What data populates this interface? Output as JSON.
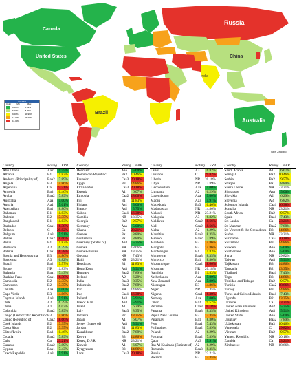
{
  "colors": {
    "ocean": "#ffffff",
    "green": "#24b34b",
    "light_green": "#b7e07f",
    "yellow": "#f6f000",
    "orange": "#f7a21b",
    "red": "#e4322b"
  },
  "map": {
    "labels": {
      "canada": "Canada",
      "usa": "United States",
      "russia": "Russia",
      "china": "China",
      "india": "India",
      "brazil": "Brazil",
      "australia": "Australia",
      "new_zealand": "New Zealand"
    }
  },
  "legend": {
    "title": "LEGEND",
    "col1": "Color",
    "col2": "Min",
    "col3": "Max",
    "rows": [
      {
        "min": "0.00%",
        "max": "5.99%"
      },
      {
        "min": "6.00%",
        "max": "8.99%"
      },
      {
        "min": "9.00%",
        "max": "11.99%"
      },
      {
        "min": "12.00%",
        "max": "15.99%"
      },
      {
        "min": "16.00%",
        "max": ""
      }
    ]
  },
  "table": {
    "headers": {
      "country": "Country",
      "rating": "Rating",
      "erp": "ERP"
    },
    "col1": [
      {
        "c": "Abu Dhabi",
        "r": "Aa2",
        "e": "5.75%",
        "k": "g"
      },
      {
        "c": "Albania",
        "r": "B1",
        "e": "11.83%",
        "k": "y"
      },
      {
        "c": "Andorra (Principality of)",
        "r": "Baa2",
        "e": "7.89%",
        "k": "l"
      },
      {
        "c": "Angola",
        "r": "B3",
        "e": "14.86%",
        "k": "o"
      },
      {
        "c": "Argentina",
        "r": "Ca",
        "e": "23.21%",
        "k": "r"
      },
      {
        "c": "Armenia",
        "r": "Ba3",
        "e": "10.46%",
        "k": "y"
      },
      {
        "c": "Aruba",
        "r": "Baa2",
        "e": "7.89%",
        "k": "l"
      },
      {
        "c": "Australia",
        "r": "Aaa",
        "e": "5.00%",
        "k": "g"
      },
      {
        "c": "Austria",
        "r": "Aa1",
        "e": "5.61%",
        "k": "g"
      },
      {
        "c": "Azerbaijan",
        "r": "Ba1",
        "e": "8.80%",
        "k": "l"
      },
      {
        "c": "Bahamas",
        "r": "B1",
        "e": "11.83%",
        "k": "y"
      },
      {
        "c": "Bahrain",
        "r": "B2",
        "e": "13.35%",
        "k": "o"
      },
      {
        "c": "Bangladesh",
        "r": "B1",
        "e": "11.83%",
        "k": "y"
      },
      {
        "c": "Barbados",
        "r": "Caa1",
        "e": "16.38%",
        "k": "r"
      },
      {
        "c": "Belarus",
        "r": "C",
        "e": "29.82%",
        "k": "r"
      },
      {
        "c": "Belgium",
        "r": "Aa3",
        "e": "5.91%",
        "k": "g"
      },
      {
        "c": "Belize",
        "r": "Caa2",
        "e": "18.66%",
        "k": "r"
      },
      {
        "c": "Benin",
        "r": "B1",
        "e": "11.83%",
        "k": "y"
      },
      {
        "c": "Bermuda",
        "r": "A2",
        "e": "6.29%",
        "k": "l"
      },
      {
        "c": "Bolivia",
        "r": "Caa1",
        "e": "16.38%",
        "k": "r"
      },
      {
        "c": "Bosnia and Herzegovina",
        "r": "B3",
        "e": "14.86%",
        "k": "o"
      },
      {
        "c": "Botswana",
        "r": "A3",
        "e": "6.82%",
        "k": "l"
      },
      {
        "c": "Brazil",
        "r": "Ba2",
        "e": "9.57%",
        "k": "y"
      },
      {
        "c": "Brunei",
        "r": "NR",
        "e": "11.83%",
        "k": "n"
      },
      {
        "c": "Bulgaria",
        "r": "Baa1",
        "e": "7.43%",
        "k": "l"
      },
      {
        "c": "Burkina Faso",
        "r": "Caa1",
        "e": "16.38%",
        "k": "r"
      },
      {
        "c": "Cambodia",
        "r": "B2",
        "e": "13.35%",
        "k": "o"
      },
      {
        "c": "Cameroon",
        "r": "B2",
        "e": "13.35%",
        "k": "o"
      },
      {
        "c": "Canada",
        "r": "Aaa",
        "e": "5.00%",
        "k": "g"
      },
      {
        "c": "Cape Verde",
        "r": "B3",
        "e": "14.86%",
        "k": "o"
      },
      {
        "c": "Cayman Islands",
        "r": "Aa3",
        "e": "5.91%",
        "k": "g"
      },
      {
        "c": "Chile",
        "r": "A2",
        "e": "6.29%",
        "k": "l"
      },
      {
        "c": "China",
        "r": "A1",
        "e": "6.07%",
        "k": "l"
      },
      {
        "c": "Colombia",
        "r": "Baa2",
        "e": "7.89%",
        "k": "l"
      },
      {
        "c": "Congo (Democratic Republic of)",
        "r": "B3",
        "e": "14.86%",
        "k": "o"
      },
      {
        "c": "Congo (Republic of)",
        "r": "Caa2",
        "e": "18.66%",
        "k": "r"
      },
      {
        "c": "Cook Islands",
        "r": "B2",
        "e": "13.35%",
        "k": "o"
      },
      {
        "c": "Costa Rica",
        "r": "B2",
        "e": "13.35%",
        "k": "o"
      },
      {
        "c": "Côte d'Ivoire",
        "r": "Ba3",
        "e": "10.46%",
        "k": "y"
      },
      {
        "c": "Croatia",
        "r": "Baa2",
        "e": "7.89%",
        "k": "l"
      },
      {
        "c": "Cuba",
        "r": "Ca",
        "e": "23.21%",
        "k": "r"
      },
      {
        "c": "Curacao",
        "r": "Baa2",
        "e": "7.89%",
        "k": "l"
      },
      {
        "c": "Cyprus",
        "r": "Baa1",
        "e": "7.43%",
        "k": "l"
      },
      {
        "c": "Czech Republic",
        "r": "Aa3",
        "e": "5.91%",
        "k": "g"
      }
    ],
    "col2": [
      {
        "c": "Denmark",
        "r": "Aaa",
        "e": "5.00%",
        "k": "g"
      },
      {
        "c": "Dominican Republic",
        "r": "Ba3",
        "e": "10.46%",
        "k": "y"
      },
      {
        "c": "Ecuador",
        "r": "Caa3",
        "e": "20.18%",
        "k": "r"
      },
      {
        "c": "Egypt",
        "r": "B3",
        "e": "14.86%",
        "k": "o"
      },
      {
        "c": "El Salvador",
        "r": "Caa3",
        "e": "20.18%",
        "k": "r"
      },
      {
        "c": "Estonia",
        "r": "A1",
        "e": "6.07%",
        "k": "l"
      },
      {
        "c": "Ethiopia",
        "r": "Caa2",
        "e": "18.66%",
        "k": "r"
      },
      {
        "c": "Fiji",
        "r": "B1",
        "e": "11.83%",
        "k": "y"
      },
      {
        "c": "Finland",
        "r": "Aa1",
        "e": "5.00%",
        "k": "g"
      },
      {
        "c": "France",
        "r": "Aa2",
        "e": "5.75%",
        "k": "g"
      },
      {
        "c": "Gabon",
        "r": "Caa1",
        "e": "16.38%",
        "k": "r"
      },
      {
        "c": "Gambia",
        "r": "NR",
        "e": "13.35%",
        "k": "n"
      },
      {
        "c": "Georgia",
        "r": "Ba2",
        "e": "9.57%",
        "k": "y"
      },
      {
        "c": "Germany",
        "r": "Aaa",
        "e": "5.00%",
        "k": "g"
      },
      {
        "c": "Ghana",
        "r": "Ca",
        "e": "23.21%",
        "k": "r"
      },
      {
        "c": "Greece",
        "r": "Ba1",
        "e": "8.80%",
        "k": "l"
      },
      {
        "c": "Guatemala",
        "r": "Ba1",
        "e": "8.80%",
        "k": "l"
      },
      {
        "c": "Guernsey (States of)",
        "r": "Aa3",
        "e": "5.75%",
        "k": "g"
      },
      {
        "c": "Guinea",
        "r": "NR",
        "e": "18.66%",
        "k": "n"
      },
      {
        "c": "Guinea-Bissau",
        "r": "NR",
        "e": "13.35%",
        "k": "n"
      },
      {
        "c": "Guyana",
        "r": "NR",
        "e": "7.43%",
        "k": "n"
      },
      {
        "c": "Haiti",
        "r": "NR",
        "e": "23.21%",
        "k": "n"
      },
      {
        "c": "Honduras",
        "r": "B1",
        "e": "11.83%",
        "k": "y"
      },
      {
        "c": "Hong Kong",
        "r": "Aa3",
        "e": "5.91%",
        "k": "g"
      },
      {
        "c": "Hungary",
        "r": "Baa2",
        "e": "7.89%",
        "k": "l"
      },
      {
        "c": "Iceland",
        "r": "A2",
        "e": "6.29%",
        "k": "l"
      },
      {
        "c": "India",
        "r": "Baa3",
        "e": "8.35%",
        "k": "l"
      },
      {
        "c": "Indonesia",
        "r": "Baa2",
        "e": "7.89%",
        "k": "l"
      },
      {
        "c": "Iran",
        "r": "NR",
        "e": "14.86%",
        "k": "n"
      },
      {
        "c": "Iraq",
        "r": "Caa1",
        "e": "16.38%",
        "k": "r"
      },
      {
        "c": "Ireland",
        "r": "Aa3",
        "e": "5.91%",
        "k": "g"
      },
      {
        "c": "Isle of Man",
        "r": "Aa3",
        "e": "5.91%",
        "k": "g"
      },
      {
        "c": "Israel",
        "r": "A1",
        "e": "6.29%",
        "k": "l"
      },
      {
        "c": "Italy",
        "r": "Baa3",
        "e": "8.35%",
        "k": "l"
      },
      {
        "c": "Jamaica",
        "r": "B2",
        "e": "13.35%",
        "k": "o"
      },
      {
        "c": "Japan",
        "r": "A1",
        "e": "6.07%",
        "k": "l"
      },
      {
        "c": "Jersey (States of)",
        "r": "Aa3",
        "e": "5.91%",
        "k": "g"
      },
      {
        "c": "Jordan",
        "r": "B1",
        "e": "11.83%",
        "k": "y"
      },
      {
        "c": "Kazakhstan",
        "r": "Baa2",
        "e": "7.89%",
        "k": "l"
      },
      {
        "c": "Kenya",
        "r": "B3",
        "e": "14.86%",
        "k": "o"
      },
      {
        "c": "Korea, D.P.R.",
        "r": "NR",
        "e": "23.21%",
        "k": "n"
      },
      {
        "c": "Kuwait",
        "r": "A1",
        "e": "6.07%",
        "k": "l"
      },
      {
        "c": "Kyrgyzstan",
        "r": "B3",
        "e": "14.86%",
        "k": "o"
      },
      {
        "c": "Laos",
        "r": "Caa3",
        "e": "20.18%",
        "k": "r"
      }
    ],
    "col3": [
      {
        "c": "Latvia",
        "r": "A3",
        "e": "6.82%",
        "k": "l"
      },
      {
        "c": "Lebanon",
        "r": "C",
        "e": "29.82%",
        "k": "r"
      },
      {
        "c": "Liberia",
        "r": "NR",
        "e": "20.18%",
        "k": "n"
      },
      {
        "c": "Libya",
        "r": "NR",
        "e": "7.89%",
        "k": "n"
      },
      {
        "c": "Liechtenstein",
        "r": "Aaa",
        "e": "5.00%",
        "k": "g"
      },
      {
        "c": "Lithuania",
        "r": "A2",
        "e": "6.29%",
        "k": "l"
      },
      {
        "c": "Luxembourg",
        "r": "Aaa",
        "e": "5.00%",
        "k": "g"
      },
      {
        "c": "Macau",
        "r": "Aa3",
        "e": "5.91%",
        "k": "g"
      },
      {
        "c": "Macedonia",
        "r": "Ba3",
        "e": "10.46%",
        "k": "y"
      },
      {
        "c": "Madagascar",
        "r": "NR",
        "e": "14.86%",
        "k": "n"
      },
      {
        "c": "Malawi",
        "r": "NR",
        "e": "23.21%",
        "k": "n"
      },
      {
        "c": "Malaysia",
        "r": "A3",
        "e": "6.82%",
        "k": "l"
      },
      {
        "c": "Maldives",
        "r": "Caa2",
        "e": "18.66%",
        "k": "r"
      },
      {
        "c": "Mali",
        "r": "Caa2",
        "e": "18.66%",
        "k": "r"
      },
      {
        "c": "Malta",
        "r": "A2",
        "e": "6.29%",
        "k": "l"
      },
      {
        "c": "Mauritius",
        "r": "Baa3",
        "e": "8.35%",
        "k": "l"
      },
      {
        "c": "Mexico",
        "r": "Baa2",
        "e": "7.89%",
        "k": "l"
      },
      {
        "c": "Moldova",
        "r": "B3",
        "e": "14.86%",
        "k": "o"
      },
      {
        "c": "Mongolia",
        "r": "B3",
        "e": "14.86%",
        "k": "o"
      },
      {
        "c": "Montenegro",
        "r": "B1",
        "e": "11.83%",
        "k": "y"
      },
      {
        "c": "Montserrat",
        "r": "Baa3",
        "e": "8.35%",
        "k": "l"
      },
      {
        "c": "Morocco",
        "r": "Ba1",
        "e": "8.80%",
        "k": "l"
      },
      {
        "c": "Mozambique",
        "r": "Caa2",
        "e": "18.66%",
        "k": "r"
      },
      {
        "c": "Myanmar",
        "r": "NR",
        "e": "20.18%",
        "k": "n"
      },
      {
        "c": "Namibia",
        "r": "B1",
        "e": "11.83%",
        "k": "y"
      },
      {
        "c": "Netherlands",
        "r": "Aaa",
        "e": "5.00%",
        "k": "g"
      },
      {
        "c": "New Zealand",
        "r": "Aaa",
        "e": "5.00%",
        "k": "g"
      },
      {
        "c": "Nicaragua",
        "r": "B3",
        "e": "14.86%",
        "k": "o"
      },
      {
        "c": "Niger",
        "r": "NR",
        "e": "13.35%",
        "k": "n"
      },
      {
        "c": "Nigeria",
        "r": "Caa1",
        "e": "16.38%",
        "k": "r"
      },
      {
        "c": "Norway",
        "r": "Aaa",
        "e": "5.00%",
        "k": "g"
      },
      {
        "c": "Oman",
        "r": "Ba2",
        "e": "9.57%",
        "k": "y"
      },
      {
        "c": "Pakistan",
        "r": "Caa3",
        "e": "20.18%",
        "k": "r"
      },
      {
        "c": "Panama",
        "r": "Baa3",
        "e": "8.35%",
        "k": "l"
      },
      {
        "c": "Papua New Guinea",
        "r": "B2",
        "e": "13.35%",
        "k": "o"
      },
      {
        "c": "Paraguay",
        "r": "Ba1",
        "e": "8.80%",
        "k": "l"
      },
      {
        "c": "Peru",
        "r": "Baa1",
        "e": "7.43%",
        "k": "l"
      },
      {
        "c": "Philippines",
        "r": "Baa2",
        "e": "7.89%",
        "k": "l"
      },
      {
        "c": "Poland",
        "r": "A2",
        "e": "6.29%",
        "k": "l"
      },
      {
        "c": "Portugal",
        "r": "Baa2",
        "e": "7.89%",
        "k": "l"
      },
      {
        "c": "Qatar",
        "r": "Aa3",
        "e": "5.91%",
        "k": "g"
      },
      {
        "c": "Ras Al Khaimah (Emirate of)",
        "r": "A2",
        "e": "6.29%",
        "k": "l"
      },
      {
        "c": "Romania",
        "r": "Baa3",
        "e": "8.35%",
        "k": "l"
      },
      {
        "c": "Russia",
        "r": "NR",
        "e": "23.21%",
        "k": "n"
      },
      {
        "c": "Rwanda",
        "r": "B2",
        "e": "13.35%",
        "k": "o"
      }
    ],
    "col4": [
      {
        "c": "Saudi Arabia",
        "r": "A1",
        "e": "6.07%",
        "k": "l"
      },
      {
        "c": "Senegal",
        "r": "Ba3",
        "e": "10.46%",
        "k": "y"
      },
      {
        "c": "Serbia",
        "r": "Ba2",
        "e": "9.57%",
        "k": "y"
      },
      {
        "c": "Sharjah",
        "r": "Ba1",
        "e": "8.80%",
        "k": "l"
      },
      {
        "c": "Sierra Leone",
        "r": "NR",
        "e": "23.21%",
        "k": "n"
      },
      {
        "c": "Singapore",
        "r": "Aaa",
        "e": "5.00%",
        "k": "g"
      },
      {
        "c": "Slovakia",
        "r": "A2",
        "e": "6.29%",
        "k": "l"
      },
      {
        "c": "Slovenia",
        "r": "A3",
        "e": "6.82%",
        "k": "l"
      },
      {
        "c": "Solomon Islands",
        "r": "Caa1",
        "e": "16.38%",
        "k": "r"
      },
      {
        "c": "Somalia",
        "r": "NR",
        "e": "23.21%",
        "k": "n"
      },
      {
        "c": "South Africa",
        "r": "Ba2",
        "e": "9.57%",
        "k": "y"
      },
      {
        "c": "Spain",
        "r": "Baa1",
        "e": "7.43%",
        "k": "l"
      },
      {
        "c": "Sri Lanka",
        "r": "Ca",
        "e": "23.21%",
        "k": "r"
      },
      {
        "c": "St. Maarten",
        "r": "Baa2",
        "e": "7.89%",
        "k": "l"
      },
      {
        "c": "St. Vincent & the Grenadines",
        "r": "B3",
        "e": "14.86%",
        "k": "o"
      },
      {
        "c": "Sudan",
        "r": "NR",
        "e": "23.21%",
        "k": "n"
      },
      {
        "c": "Suriname",
        "r": "Caa3",
        "e": "20.18%",
        "k": "r"
      },
      {
        "c": "Swaziland",
        "r": "B3",
        "e": "14.86%",
        "k": "o"
      },
      {
        "c": "Sweden",
        "r": "Aaa",
        "e": "5.00%",
        "k": "g"
      },
      {
        "c": "Switzerland",
        "r": "Aaa",
        "e": "5.00%",
        "k": "g"
      },
      {
        "c": "Syria",
        "r": "NR",
        "e": "29.82%",
        "k": "n"
      },
      {
        "c": "Taiwan",
        "r": "Aa3",
        "e": "5.91%",
        "k": "g"
      },
      {
        "c": "Tajikistan",
        "r": "B3",
        "e": "14.86%",
        "k": "o"
      },
      {
        "c": "Tanzania",
        "r": "B2",
        "e": "13.35%",
        "k": "o"
      },
      {
        "c": "Thailand",
        "r": "Baa1",
        "e": "7.43%",
        "k": "l"
      },
      {
        "c": "Togo",
        "r": "B3",
        "e": "14.86%",
        "k": "o"
      },
      {
        "c": "Trinidad and Tobago",
        "r": "Ba2",
        "e": "9.57%",
        "k": "y"
      },
      {
        "c": "Tunisia",
        "r": "Caa2",
        "e": "18.66%",
        "k": "r"
      },
      {
        "c": "Turkey",
        "r": "B3",
        "e": "14.86%",
        "k": "o"
      },
      {
        "c": "Turks and Caicos Islands",
        "r": "Baa1",
        "e": "7.43%",
        "k": "l"
      },
      {
        "c": "Uganda",
        "r": "B2",
        "e": "13.35%",
        "k": "o"
      },
      {
        "c": "Ukraine",
        "r": "Ca",
        "e": "23.21%",
        "k": "r"
      },
      {
        "c": "United Arab Emirates",
        "r": "Aa2",
        "e": "5.75%",
        "k": "g"
      },
      {
        "c": "United Kingdom",
        "r": "Aa3",
        "e": "5.91%",
        "k": "g"
      },
      {
        "c": "United States",
        "r": "Aaa",
        "e": "5.00%",
        "k": "g"
      },
      {
        "c": "Uruguay",
        "r": "Baa2",
        "e": "7.89%",
        "k": "l"
      },
      {
        "c": "Uzbekistan",
        "r": "Ba3",
        "e": "10.46%",
        "k": "y"
      },
      {
        "c": "Venezuela",
        "r": "C",
        "e": "29.82%",
        "k": "r"
      },
      {
        "c": "Vietnam",
        "r": "Ba2",
        "e": "9.57%",
        "k": "y"
      },
      {
        "c": "Yemen, Republic",
        "r": "NR",
        "e": "20.18%",
        "k": "n"
      },
      {
        "c": "Zambia",
        "r": "Ca",
        "e": "23.21%",
        "k": "r"
      },
      {
        "c": "Zimbabwe",
        "r": "NR",
        "e": "18.66%",
        "k": "n"
      }
    ]
  }
}
